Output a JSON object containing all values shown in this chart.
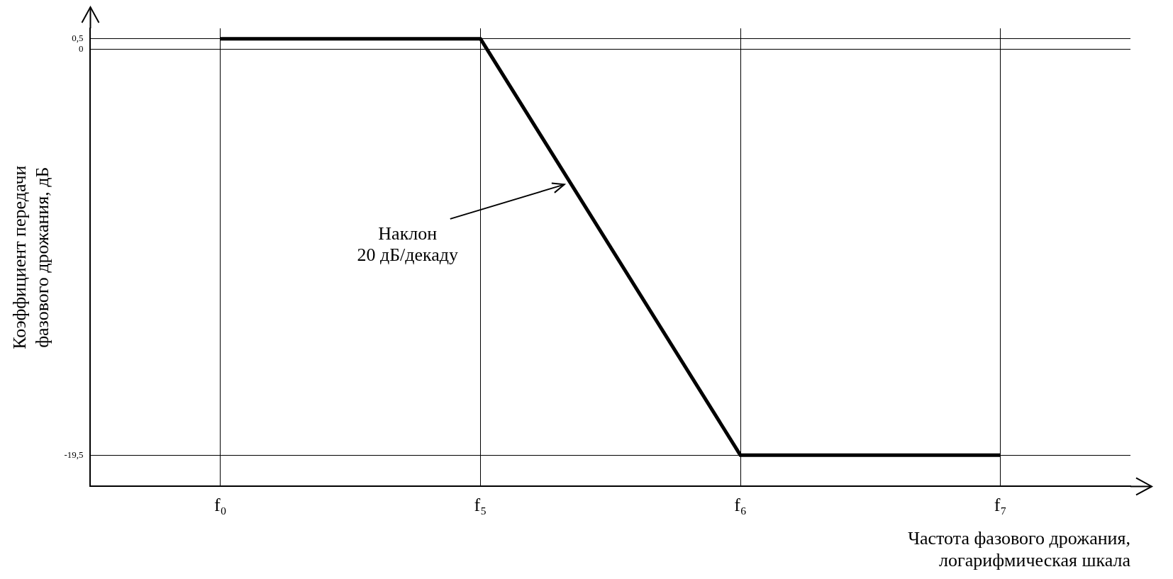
{
  "chart_data": {
    "type": "line",
    "ylabel": "Коэффициент передачи\nфазового дрожания, дБ",
    "xlabel": "Частота фазового дрожания,\nлогарифмическая шкала",
    "categories": [
      "f₀",
      "f₅",
      "f₆",
      "f₇"
    ],
    "values": [
      0.5,
      0.5,
      -19.5,
      -19.5
    ],
    "color": "#000000",
    "ylim": [
      -21,
      1
    ],
    "yticks": [
      {
        "value": -19.5,
        "label": "-19,5"
      },
      {
        "value": 0,
        "label": "0"
      },
      {
        "value": 0.5,
        "label": "0,5"
      }
    ],
    "grid": true,
    "legend": false,
    "annotations": [
      "Наклон\n20 дБ/декаду"
    ]
  }
}
